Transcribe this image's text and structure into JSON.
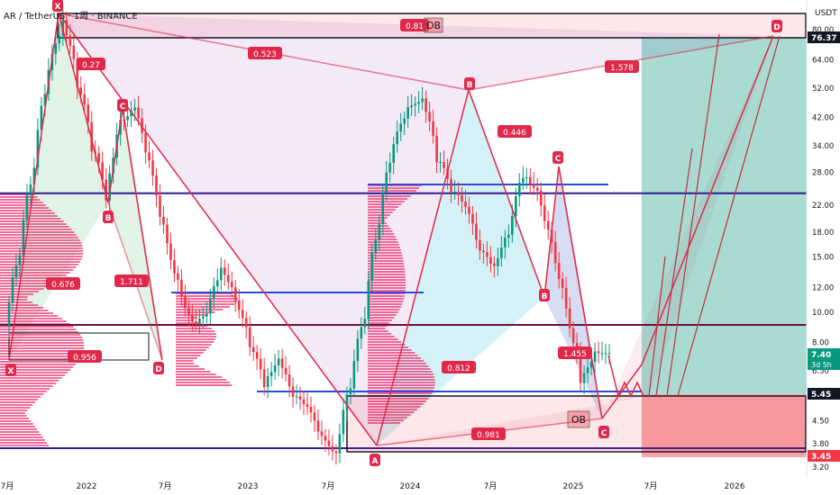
{
  "header": {
    "symbol": "AR / TetherUS",
    "interval": "1周",
    "exchange": "BINANCE",
    "separator": "·"
  },
  "currency": "USDT",
  "chart_data": {
    "type": "candlestick",
    "scale": "log",
    "y_ticks": [
      3.2,
      3.8,
      4.5,
      5.45,
      6.5,
      8.0,
      10.0,
      12.0,
      15.0,
      18.0,
      22.0,
      28.0,
      34.0,
      42.0,
      52.0,
      64.0,
      80.0
    ],
    "y_ticks_text": [
      "3.20",
      "3.80",
      "4.50",
      "",
      "6.50",
      "8.00",
      "10.00",
      "12.00",
      "15.00",
      "18.00",
      "22.00",
      "28.00",
      "34.00",
      "42.00",
      "52.00",
      "64.00",
      "80.00"
    ],
    "x_ticks": [
      "7月",
      "2022",
      "7月",
      "2023",
      "7月",
      "2024",
      "7月",
      "2025",
      "7月",
      "2026"
    ],
    "price_badges": [
      {
        "value": "76.37",
        "color": "#131722"
      },
      {
        "value": "7.40",
        "sub": "3d 5h",
        "color": "#089981"
      },
      {
        "value": "5.45",
        "color": "#131722"
      },
      {
        "value": "3.45",
        "color": "#f23645"
      }
    ],
    "series": [
      {
        "name": "weekly-close",
        "values": [
          9,
          16,
          30,
          60,
          85,
          55,
          35,
          24,
          40,
          45,
          30,
          18,
          12,
          9,
          10,
          14,
          11,
          8,
          6,
          7,
          5.5,
          5,
          4,
          3.5,
          6,
          10,
          20,
          35,
          45,
          48,
          32,
          25,
          22,
          16,
          14,
          18,
          28,
          24,
          16,
          10,
          6,
          7.4
        ]
      }
    ],
    "patterns": [
      {
        "points": [
          "X",
          "A",
          "B",
          "C",
          "D"
        ],
        "ratios": [
          "0.27",
          "1.711",
          "0.676",
          "0.956"
        ]
      },
      {
        "points": [
          "A",
          "B",
          "C",
          "D"
        ],
        "ratios": [
          "0.446",
          "1.455",
          "0.812"
        ]
      },
      {
        "points": [
          "X",
          "D"
        ],
        "ratios": [
          "0.523",
          "1.578",
          "0.981",
          "0.81"
        ]
      }
    ],
    "labels": {
      "ob_top": "OB",
      "ob_bottom": "OB"
    },
    "horizontal_levels": [
      76.37,
      24,
      9.5,
      5.45,
      3.45
    ]
  }
}
